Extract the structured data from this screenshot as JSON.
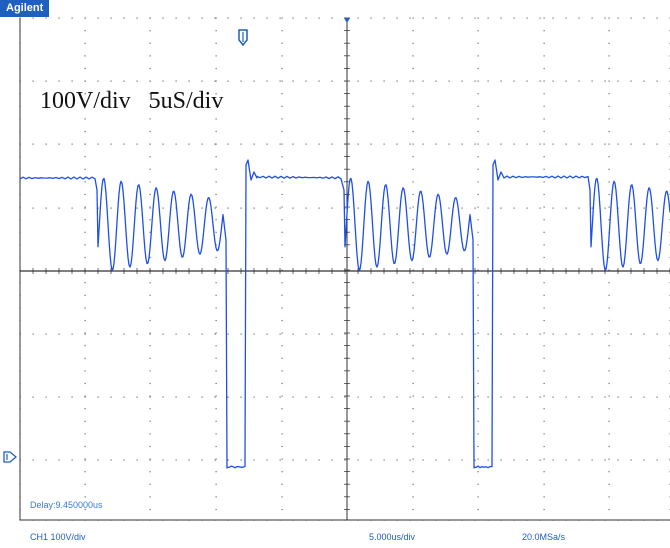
{
  "brand": "Agilent",
  "annotation": "100V/div   5uS/div",
  "delay": "Delay:9.450000us",
  "status": {
    "channel": "CH1 100V/div",
    "timebase": "5.000us/div",
    "samplerate": "20.0MSa/s"
  },
  "colors": {
    "trace": "#1f4fe8",
    "grid_dots": "#6a6a6a",
    "axis": "#333333",
    "brand_bg": "#1f5fbf",
    "status_text": "#1f5fbf"
  },
  "icons": {
    "trigger_marker": "trigger-position-icon",
    "ground_marker": "ground-level-icon"
  }
}
